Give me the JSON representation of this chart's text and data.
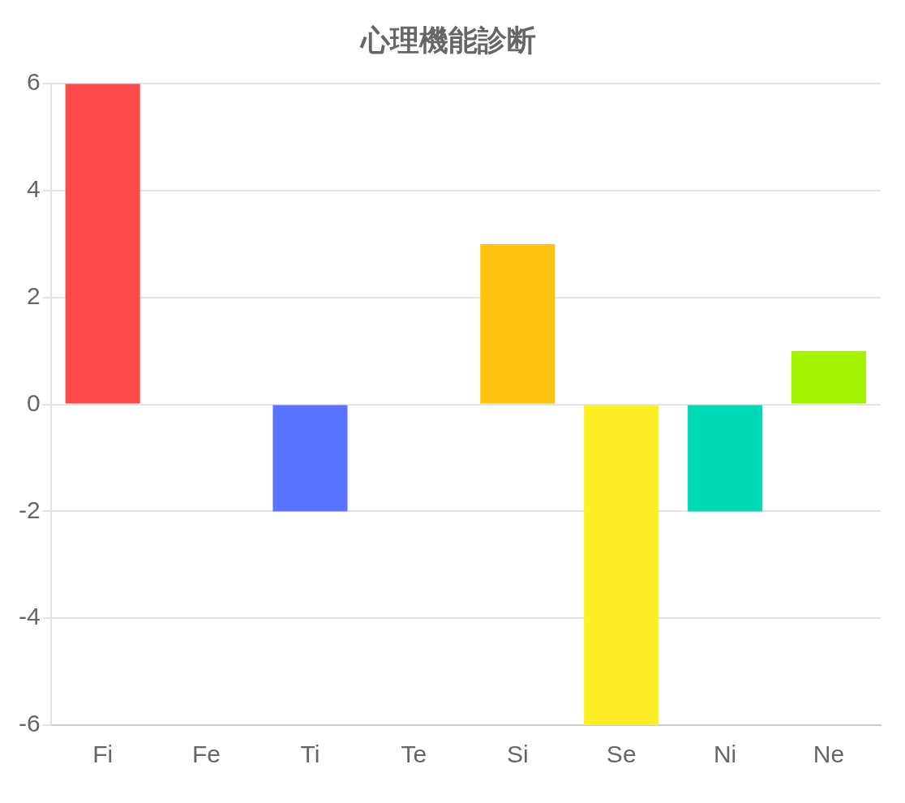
{
  "chart_data": {
    "type": "bar",
    "title": "心理機能診断",
    "categories": [
      "Fi",
      "Fe",
      "Ti",
      "Te",
      "Si",
      "Se",
      "Ni",
      "Ne"
    ],
    "values": [
      6,
      0,
      -2,
      0,
      3,
      -6,
      -2,
      1
    ],
    "colors": [
      "#ff4b4b",
      "#ff8a3d",
      "#5a73ff",
      "#b05cff",
      "#fdc30f",
      "#fdef24",
      "#00d9b6",
      "#a3f300"
    ],
    "ylim": [
      -6,
      6
    ],
    "yticks": [
      -6,
      -4,
      -2,
      0,
      2,
      4,
      6
    ],
    "grid": "y",
    "legend": false
  }
}
